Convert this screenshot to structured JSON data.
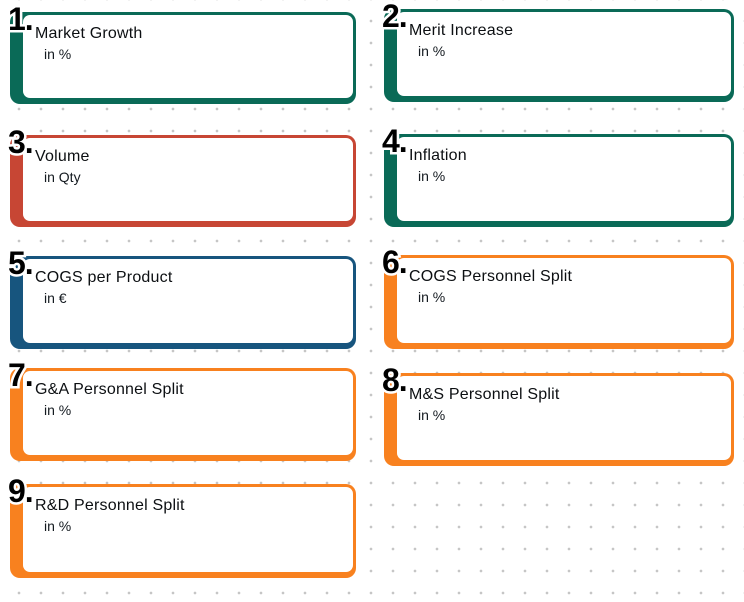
{
  "canvas": {
    "background_color": "#ffffff",
    "grid_dot_color": "#c6c6c6"
  },
  "cards": [
    {
      "number": "1.",
      "title": "Market Growth",
      "subtitle": "in %",
      "accent_color": "#0a6a57"
    },
    {
      "number": "2.",
      "title": "Merit Increase",
      "subtitle": "in %",
      "accent_color": "#0a6a57"
    },
    {
      "number": "3.",
      "title": "Volume",
      "subtitle": "in Qty",
      "accent_color": "#c74634"
    },
    {
      "number": "4.",
      "title": "Inflation",
      "subtitle": "in %",
      "accent_color": "#0a6a57"
    },
    {
      "number": "5.",
      "title": "COGS per Product",
      "subtitle": "in €",
      "accent_color": "#17557e"
    },
    {
      "number": "6.",
      "title": "COGS Personnel Split",
      "subtitle": "in %",
      "accent_color": "#f8811f"
    },
    {
      "number": "7.",
      "title": "G&A Personnel Split",
      "subtitle": "in %",
      "accent_color": "#f8811f"
    },
    {
      "number": "8.",
      "title": "M&S Personnel Split",
      "subtitle": "in %",
      "accent_color": "#f8811f"
    },
    {
      "number": "9.",
      "title": "R&D Personnel Split",
      "subtitle": "in %",
      "accent_color": "#f8811f"
    }
  ]
}
